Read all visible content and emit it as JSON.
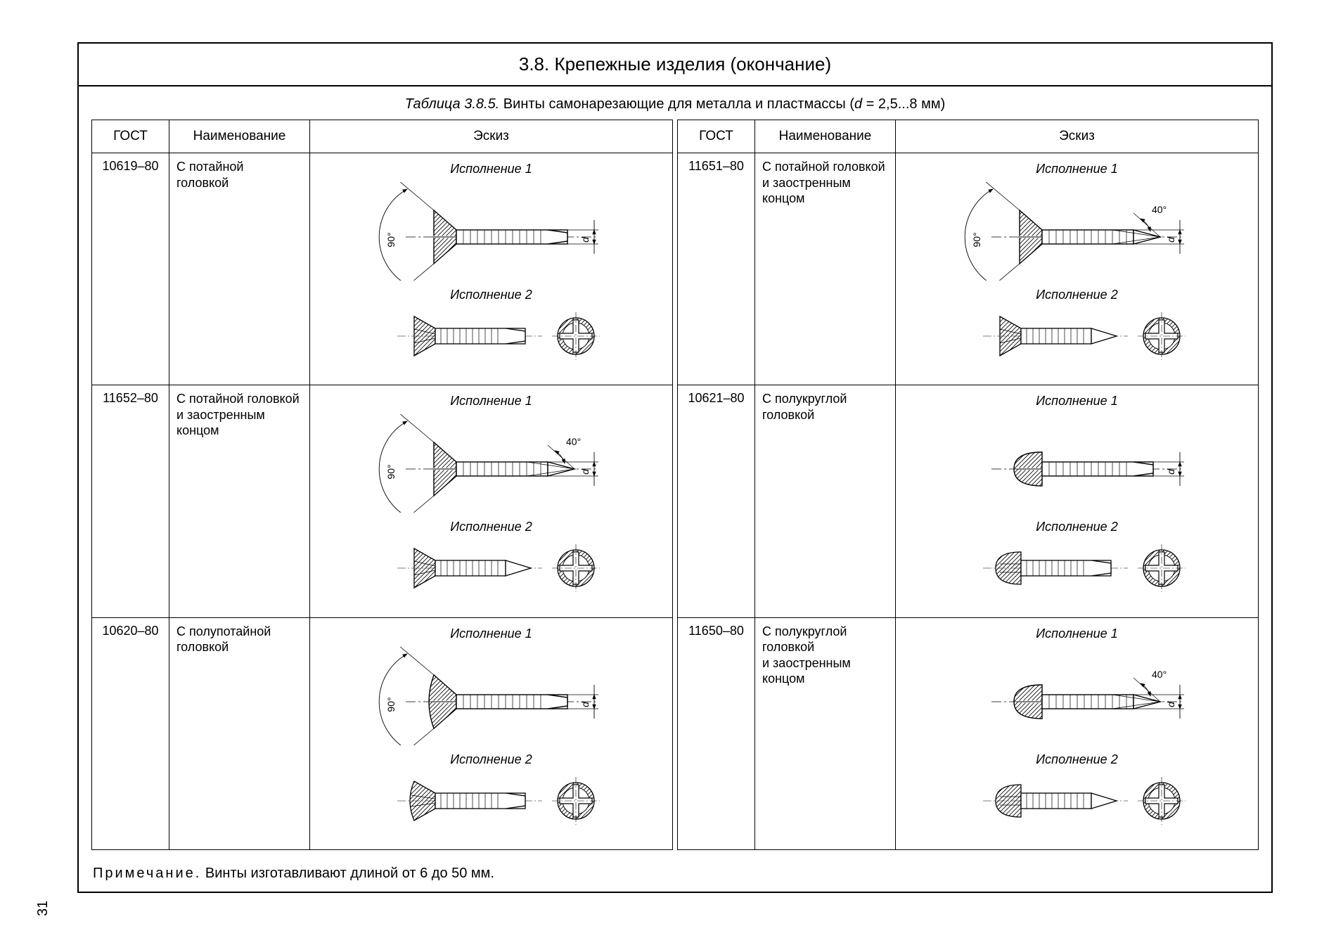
{
  "title": "3.8.  Крепежные изделия (окончание)",
  "subtitle_prefix": "Таблица 3.8.5.",
  "subtitle_text": "  Винты самонарезающие для металла и пластмассы (",
  "subtitle_dvar": "d",
  "subtitle_suffix": " = 2,5...8 мм)",
  "headers": {
    "gost": "ГОСТ",
    "name": "Наименование",
    "sketch": "Эскиз"
  },
  "exec": {
    "v1": "Исполнение 1",
    "v2": "Исполнение 2"
  },
  "left": [
    {
      "gost": "10619–80",
      "name": "С потайной\nголовкой",
      "head": "flat",
      "tip": "blunt",
      "angle90": true,
      "angle40": false
    },
    {
      "gost": "11652–80",
      "name": "С потайной головкой\nи заостренным\nконцом",
      "head": "flat",
      "tip": "point",
      "angle90": true,
      "angle40": true
    },
    {
      "gost": "10620–80",
      "name": "С полупотайной\nголовкой",
      "head": "oval",
      "tip": "blunt",
      "angle90": true,
      "angle40": false
    }
  ],
  "right": [
    {
      "gost": "11651–80",
      "name": "С потайной головкой\nи заостренным\nконцом",
      "head": "flat",
      "tip": "point",
      "angle90": true,
      "angle40": true
    },
    {
      "gost": "10621–80",
      "name": "С полукруглой\nголовкой",
      "head": "round",
      "tip": "blunt",
      "angle90": false,
      "angle40": false
    },
    {
      "gost": "11650–80",
      "name": "С полукруглой\nголовкой\nи заостренным\nконцом",
      "head": "round",
      "tip": "point",
      "angle90": false,
      "angle40": true
    }
  ],
  "note_label": "Примечание.",
  "note_text": "   Винты изготавливают длиной от 6 до 50 мм.",
  "page_number": "31",
  "dim_d": "d",
  "dim_90": "90°",
  "dim_40": "40°",
  "style": {
    "stroke": "#000000",
    "stroke_thin": 1,
    "stroke_med": 1.4,
    "hatch_gap": 5
  }
}
